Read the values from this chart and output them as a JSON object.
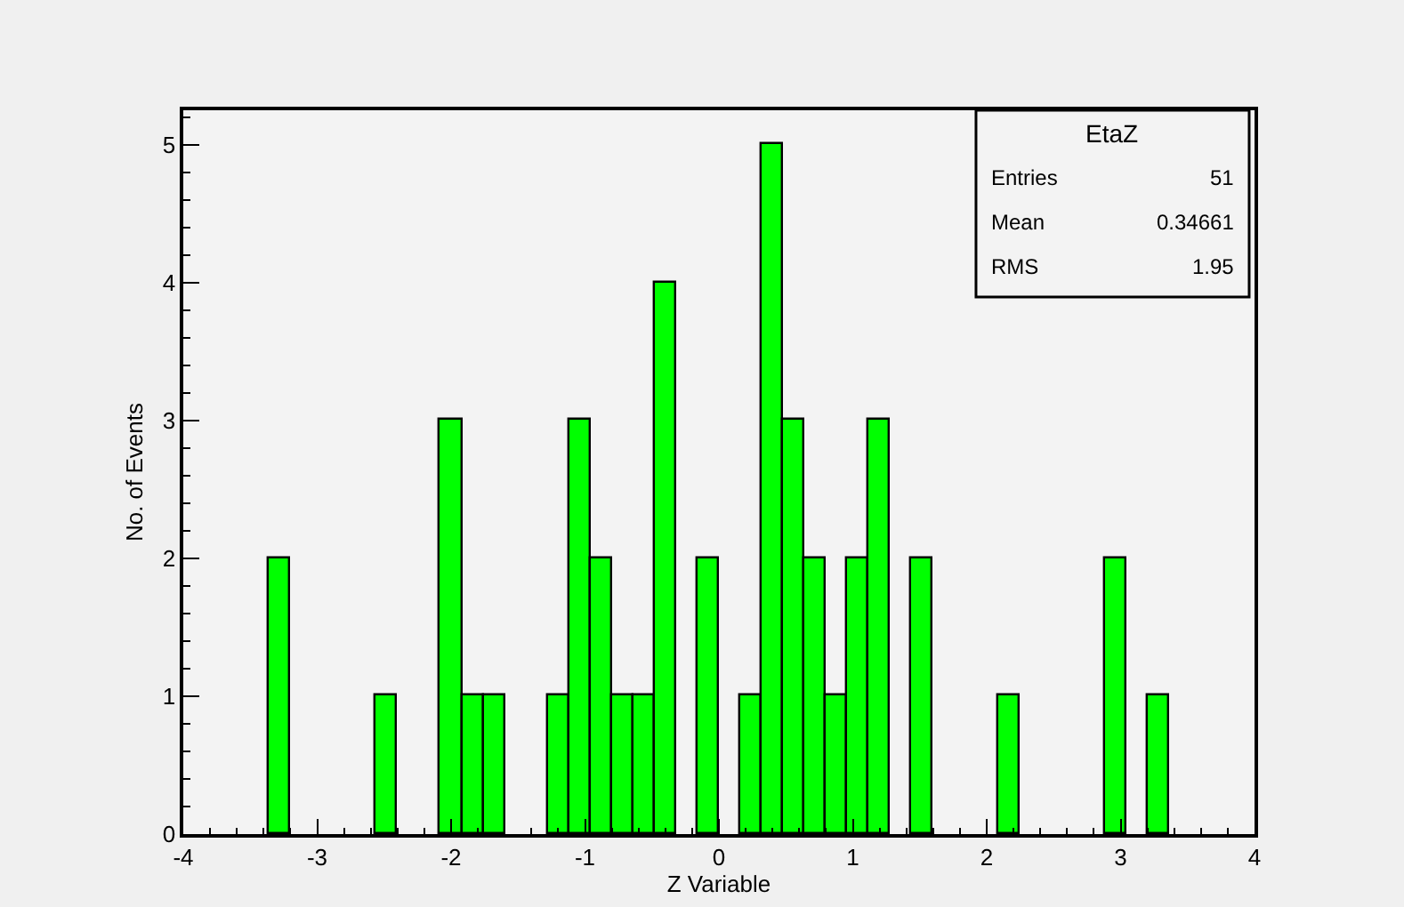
{
  "chart_data": {
    "type": "histogram",
    "xlabel": "Z Variable",
    "ylabel": "No. of Events",
    "color": "#00ff00",
    "bins": [
      -4,
      -3.84,
      -3.68,
      -3.52,
      -3.36,
      -3.2,
      -3.04,
      -2.88,
      -2.72,
      -2.56,
      -2.4,
      -2.24,
      -2.08,
      -1.92,
      -1.76,
      -1.6,
      -1.44,
      -1.28,
      -1.12,
      -0.96,
      -0.8,
      -0.64,
      -0.48,
      -0.32,
      -0.16,
      0,
      0.16,
      0.32,
      0.48,
      0.64,
      0.8,
      0.96,
      1.12,
      1.28,
      1.44,
      1.6,
      1.76,
      1.92,
      2.08,
      2.24,
      2.4,
      2.56,
      2.72,
      2.88,
      3.04,
      3.2,
      3.36,
      3.52,
      3.68,
      3.84,
      4
    ],
    "values": [
      0,
      0,
      0,
      0,
      2,
      0,
      0,
      0,
      0,
      1,
      0,
      0,
      3,
      1,
      1,
      0,
      0,
      1,
      3,
      2,
      1,
      1,
      4,
      0,
      2,
      0,
      1,
      5,
      3,
      2,
      1,
      2,
      3,
      0,
      2,
      0,
      0,
      0,
      1,
      0,
      0,
      0,
      0,
      2,
      0,
      1,
      0,
      0,
      0,
      0
    ],
    "xlim": [
      -4,
      4
    ],
    "xticks": [
      -4,
      -3,
      -2,
      -1,
      0,
      1,
      2,
      3,
      4
    ],
    "ylim": [
      0,
      5.25
    ],
    "yticks": [
      0,
      1,
      2,
      3,
      4,
      5
    ],
    "annotations": [
      "EtaZ",
      "Entries",
      "51",
      "Mean",
      "0.34661",
      "RMS",
      "1.95"
    ]
  }
}
